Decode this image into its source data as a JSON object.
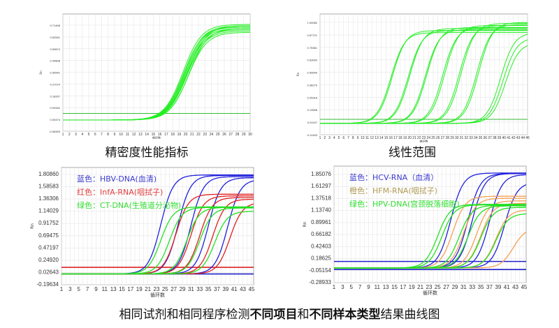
{
  "captions": {
    "precision": "精密度性能指标",
    "linearity": "线性范围",
    "bottom_part1": "相同试剂和相同程序检测",
    "bottom_bold1": "不同项目",
    "bottom_part2": "和",
    "bottom_bold2": "不同样本类型",
    "bottom_part3": "结果曲线图"
  },
  "chart_data": [
    {
      "type": "line",
      "title": "",
      "xlabel": "循环数",
      "ylabel": "Rn",
      "x_ticks": [
        1,
        2,
        3,
        4,
        5,
        6,
        7,
        8,
        9,
        10,
        11,
        12,
        13,
        14,
        15,
        16,
        17,
        18,
        19,
        20,
        21,
        22,
        23,
        24,
        25,
        26,
        27,
        28,
        29,
        30
      ],
      "y_ticks": [
        "-0.08393",
        "0.00474",
        "0.09341",
        "0.18207",
        "0.27074",
        "0.35941",
        "0.44808",
        "0.53674",
        "0.62541",
        "0.71408"
      ],
      "xlim": [
        1,
        30
      ],
      "ylim": [
        -0.08393,
        0.76
      ],
      "grid": true,
      "thresholds": [
        {
          "value": 0.05,
          "color": "#33bb33"
        }
      ],
      "curves": [
        {
          "color": "#22ee22",
          "mid": 19.6,
          "plateau": 0.72
        },
        {
          "color": "#22ee22",
          "mid": 19.8,
          "plateau": 0.71
        },
        {
          "color": "#22ee22",
          "mid": 19.9,
          "plateau": 0.7
        },
        {
          "color": "#22ee22",
          "mid": 20.0,
          "plateau": 0.69
        },
        {
          "color": "#22ee22",
          "mid": 20.1,
          "plateau": 0.68
        },
        {
          "color": "#22ee22",
          "mid": 20.2,
          "plateau": 0.67
        },
        {
          "color": "#22ee22",
          "mid": 20.3,
          "plateau": 0.71
        },
        {
          "color": "#22ee22",
          "mid": 20.4,
          "plateau": 0.66
        },
        {
          "color": "#22ee22",
          "mid": 19.7,
          "plateau": 0.7
        },
        {
          "color": "#22ee22",
          "mid": 20.5,
          "plateau": 0.69
        }
      ]
    },
    {
      "type": "line",
      "title": "",
      "xlabel": "循环数",
      "ylabel": "Rn",
      "x_ticks": [
        1,
        2,
        3,
        4,
        5,
        6,
        7,
        8,
        9,
        10,
        11,
        12,
        13,
        14,
        15,
        16,
        17,
        18,
        19,
        20,
        21,
        22,
        23,
        24,
        25,
        26,
        27,
        28,
        29,
        30,
        31,
        32,
        33,
        34,
        35,
        36,
        37,
        38,
        39,
        40,
        41,
        42,
        43,
        44,
        45
      ],
      "y_ticks": [
        "-0.11163",
        "0.01197",
        "0.13558",
        "0.25918",
        "0.38279",
        "0.50640",
        "0.63000",
        "0.75361",
        "0.87721",
        "1.00082"
      ],
      "xlim": [
        1,
        45
      ],
      "ylim": [
        -0.11163,
        1.06
      ],
      "grid": true,
      "thresholds": [
        {
          "value": 0.04,
          "color": "#33bb33"
        }
      ],
      "curves": [
        {
          "color": "#22ee22",
          "mid": 16.0,
          "plateau": 0.9
        },
        {
          "color": "#22ee22",
          "mid": 16.3,
          "plateau": 0.92
        },
        {
          "color": "#22ee22",
          "mid": 19.7,
          "plateau": 0.92
        },
        {
          "color": "#22ee22",
          "mid": 20.0,
          "plateau": 0.94
        },
        {
          "color": "#22ee22",
          "mid": 23.3,
          "plateau": 0.93
        },
        {
          "color": "#22ee22",
          "mid": 23.6,
          "plateau": 0.95
        },
        {
          "color": "#22ee22",
          "mid": 27.0,
          "plateau": 0.95
        },
        {
          "color": "#22ee22",
          "mid": 27.4,
          "plateau": 0.97
        },
        {
          "color": "#22ee22",
          "mid": 30.5,
          "plateau": 0.97
        },
        {
          "color": "#22ee22",
          "mid": 30.9,
          "plateau": 0.99
        },
        {
          "color": "#22ee22",
          "mid": 34.2,
          "plateau": 0.98
        },
        {
          "color": "#22ee22",
          "mid": 34.6,
          "plateau": 1.0
        },
        {
          "color": "#22ee22",
          "mid": 39.3,
          "plateau": 0.9
        },
        {
          "color": "#22ee22",
          "mid": 39.8,
          "plateau": 0.85
        },
        {
          "color": "#22ee22",
          "mid": 40.3,
          "plateau": 0.8
        }
      ]
    },
    {
      "type": "line",
      "title": "",
      "xlabel": "循环数",
      "ylabel": "Rn",
      "x_ticks": [
        1,
        3,
        5,
        7,
        9,
        11,
        13,
        15,
        17,
        19,
        21,
        23,
        25,
        27,
        29,
        31,
        33,
        35,
        37,
        39,
        41,
        43,
        45
      ],
      "y_ticks": [
        "-0.19634",
        "0.02643",
        "0.24920",
        "0.47197",
        "0.69475",
        "0.91752",
        "1.14029",
        "1.36306",
        "1.58583",
        "1.80860"
      ],
      "xlim": [
        1,
        45.5
      ],
      "ylim": [
        -0.19634,
        1.9
      ],
      "grid": true,
      "legend": [
        {
          "label": "蓝色：HBV-DNA(血清)",
          "color": "#3a3ad0"
        },
        {
          "label": "红色：InfA-RNA(咽拭子)",
          "color": "#e04040"
        },
        {
          "label": "绿色：CT-DNA(生殖道分泌物)",
          "color": "#33dd33"
        }
      ],
      "thresholds": [
        {
          "value": 0.12,
          "color": "#dd2020"
        },
        {
          "value": 0.0,
          "color": "#2020cc"
        }
      ],
      "curves": [
        {
          "color": "#1f1fdd",
          "mid": 24.0,
          "plateau": 1.8
        },
        {
          "color": "#1f1fdd",
          "mid": 28.0,
          "plateau": 1.79
        },
        {
          "color": "#1f1fdd",
          "mid": 31.0,
          "plateau": 1.77
        },
        {
          "color": "#1f1fdd",
          "mid": 35.0,
          "plateau": 1.75
        },
        {
          "color": "#1f1fdd",
          "mid": 39.5,
          "plateau": 1.72
        },
        {
          "color": "#e02020",
          "mid": 27.5,
          "plateau": 1.45
        },
        {
          "color": "#e02020",
          "mid": 31.0,
          "plateau": 1.42
        },
        {
          "color": "#e02020",
          "mid": 33.0,
          "plateau": 1.39
        },
        {
          "color": "#e02020",
          "mid": 36.0,
          "plateau": 1.36
        },
        {
          "color": "#e02020",
          "mid": 40.0,
          "plateau": 1.3
        },
        {
          "color": "#22e022",
          "mid": 24.0,
          "plateau": 1.22
        },
        {
          "color": "#22e022",
          "mid": 26.0,
          "plateau": 1.21
        },
        {
          "color": "#22e022",
          "mid": 30.0,
          "plateau": 1.21
        },
        {
          "color": "#22e022",
          "mid": 33.0,
          "plateau": 1.2
        },
        {
          "color": "#22e022",
          "mid": 36.5,
          "plateau": 1.14
        }
      ]
    },
    {
      "type": "line",
      "title": "",
      "xlabel": "循环数",
      "ylabel": "Rn",
      "x_ticks": [
        1,
        3,
        5,
        7,
        9,
        11,
        13,
        15,
        17,
        19,
        21,
        23,
        25,
        27,
        29,
        31,
        33,
        35,
        37,
        39,
        41,
        43,
        45
      ],
      "y_ticks": [
        "-0.28933",
        "-0.05154",
        "0.18625",
        "0.42403",
        "0.66182",
        "0.89961",
        "1.13740",
        "1.37518",
        "1.61297",
        "1.85076"
      ],
      "xlim": [
        1,
        45.5
      ],
      "ylim": [
        -0.28933,
        1.95
      ],
      "grid": true,
      "legend": [
        {
          "label": "蓝色：HCV-RNA（血清）",
          "color": "#3a3ad0"
        },
        {
          "label": "橙色：HFM-RNA(咽拭子)",
          "color": "#b09a55"
        },
        {
          "label": "绿色：HPV-DNA(宫颈脱落细胞)",
          "color": "#33dd33"
        }
      ],
      "thresholds": [
        {
          "value": 0.13,
          "color": "#2020cc"
        },
        {
          "value": -0.03,
          "color": "#2020cc"
        }
      ],
      "curves": [
        {
          "color": "#1f1fdd",
          "mid": 28.0,
          "plateau": 1.88
        },
        {
          "color": "#1f1fdd",
          "mid": 32.0,
          "plateau": 1.87
        },
        {
          "color": "#1f1fdd",
          "mid": 33.0,
          "plateau": 1.87
        },
        {
          "color": "#1f1fdd",
          "mid": 37.0,
          "plateau": 1.85
        },
        {
          "color": "#1f1fdd",
          "mid": 40.5,
          "plateau": 1.7
        },
        {
          "color": "#f5a055",
          "mid": 28.5,
          "plateau": 1.42
        },
        {
          "color": "#f5a055",
          "mid": 31.0,
          "plateau": 1.38
        },
        {
          "color": "#f5a055",
          "mid": 34.0,
          "plateau": 1.33
        },
        {
          "color": "#f5a055",
          "mid": 35.0,
          "plateau": 1.28
        },
        {
          "color": "#f5a055",
          "mid": 38.5,
          "plateau": 1.15
        },
        {
          "color": "#f5a055",
          "mid": 42.5,
          "plateau": 0.8
        },
        {
          "color": "#22e022",
          "mid": 25.0,
          "plateau": 1.26
        },
        {
          "color": "#22e022",
          "mid": 26.0,
          "plateau": 1.25
        },
        {
          "color": "#22e022",
          "mid": 30.0,
          "plateau": 1.24
        },
        {
          "color": "#22e022",
          "mid": 32.0,
          "plateau": 1.23
        },
        {
          "color": "#22e022",
          "mid": 35.0,
          "plateau": 1.2
        },
        {
          "color": "#22e022",
          "mid": 38.5,
          "plateau": 1.08
        }
      ]
    }
  ]
}
